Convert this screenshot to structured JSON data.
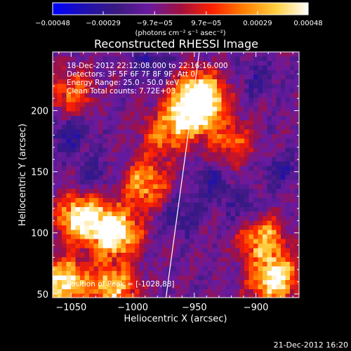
{
  "chart_data": {
    "type": "heatmap",
    "title": "Reconstructed RHESSI Image",
    "xlabel": "Heliocentric X (arcsec)",
    "ylabel": "Heliocentric Y (arcsec)",
    "xlim": [
      -1065,
      -865
    ],
    "ylim": [
      47,
      248
    ],
    "x_ticks": [
      -1050,
      -1000,
      -950,
      -900
    ],
    "y_ticks": [
      50,
      100,
      150,
      200
    ],
    "x_tick_labels": [
      "−1050",
      "−1000",
      "−950",
      "−900"
    ],
    "y_tick_labels": [
      "50",
      "100",
      "150",
      "200"
    ],
    "colorbar": {
      "range": [
        -0.00048,
        0.00048
      ],
      "tick_values": [
        -0.00048,
        -0.00029,
        -9.7e-05,
        9.7e-05,
        0.00029,
        0.00048
      ],
      "tick_labels": [
        "−0.00048",
        "−0.00029",
        "−9.7e−05",
        "9.7e−05",
        "0.00029",
        "0.00048"
      ],
      "unit_label": "(photons cm⁻² s⁻¹ asec⁻²)",
      "colormap": [
        "#0000ff",
        "#1f10b0",
        "#3a1a80",
        "#6a1aa0",
        "#a01040",
        "#ff2000",
        "#ff8000",
        "#ffd040",
        "#ffffff"
      ]
    },
    "info_lines": [
      "18-Dec-2012 22:12:08.000 to 22:16:16.000",
      "Detectors: 3F 5F 6F 7F 8F 9F, Att 0",
      "Energy Range: 25.0 - 50.0 keV",
      "Clean     Total counts: 7.72E+03"
    ],
    "peak_text": "Position of Peak = [-1028,88]",
    "limb_line": [
      [
        -973,
        47
      ],
      [
        -946,
        248
      ]
    ],
    "bright_regions": [
      {
        "x": -1015,
        "y": 100,
        "level": 1.0
      },
      {
        "x": -1042,
        "y": 112,
        "level": 0.85
      },
      {
        "x": -945,
        "y": 212,
        "level": 0.95
      },
      {
        "x": -952,
        "y": 198,
        "level": 0.8
      },
      {
        "x": -1055,
        "y": 60,
        "level": 0.8
      },
      {
        "x": -1015,
        "y": 55,
        "level": 0.7
      },
      {
        "x": -885,
        "y": 62,
        "level": 0.85
      },
      {
        "x": -895,
        "y": 95,
        "level": 0.6
      },
      {
        "x": -990,
        "y": 140,
        "level": 0.6
      },
      {
        "x": -1050,
        "y": 215,
        "level": 0.45
      },
      {
        "x": -920,
        "y": 175,
        "level": 0.4
      },
      {
        "x": -975,
        "y": 180,
        "level": 0.45
      }
    ],
    "negative_regions": [
      {
        "x": -1052,
        "y": 180,
        "level": 0.7
      },
      {
        "x": -985,
        "y": 240,
        "level": 0.5
      },
      {
        "x": -935,
        "y": 140,
        "level": 0.6
      },
      {
        "x": -910,
        "y": 120,
        "level": 0.5
      },
      {
        "x": -960,
        "y": 115,
        "level": 0.55
      },
      {
        "x": -880,
        "y": 150,
        "level": 0.5
      },
      {
        "x": -1030,
        "y": 150,
        "level": 0.4
      },
      {
        "x": -900,
        "y": 225,
        "level": 0.45
      }
    ]
  },
  "footer": {
    "timestamp": "21-Dec-2012 16:20"
  }
}
